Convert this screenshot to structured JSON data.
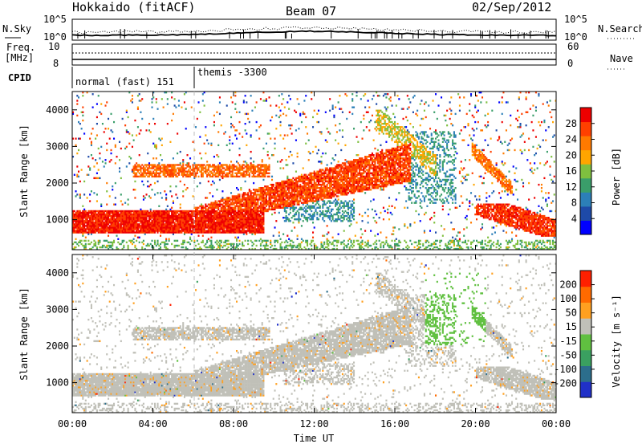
{
  "header": {
    "station": "Hokkaido (fitACF)",
    "beam": "Beam 07",
    "date": "02/Sep/2012"
  },
  "noise_panel": {
    "left_label": "N.Sky",
    "right_label": "N.Search",
    "left_ticks": [
      "10^5",
      "10^0"
    ],
    "right_ticks": [
      "10^5",
      "10^0"
    ]
  },
  "freq_panel": {
    "left_label_1": "Freq.",
    "left_label_2": "[MHz]",
    "left_ticks": [
      "10",
      "8"
    ],
    "right_label": "Nave",
    "right_ticks": [
      "60",
      "0"
    ]
  },
  "cpid_panel": {
    "label": "CPID",
    "modes": [
      "normal (fast) 151",
      "themis -3300"
    ]
  },
  "power_panel": {
    "ylabel": "Slant Range [km]",
    "yticks": [
      "4000",
      "3000",
      "2000",
      "1000"
    ],
    "colorbar_label": "Power [dB]",
    "colorbar_ticks": [
      "28",
      "24",
      "20",
      "16",
      "12",
      "8",
      "4"
    ],
    "colors": [
      "#0000ff",
      "#1e4aa8",
      "#2c7fb8",
      "#3a9e6a",
      "#7fbf3f",
      "#ffa500",
      "#ff7a00",
      "#ff4000",
      "#ee0000"
    ]
  },
  "velocity_panel": {
    "ylabel": "Slant Range [km]",
    "yticks": [
      "4000",
      "3000",
      "2000",
      "1000"
    ],
    "colorbar_label": "Velocity [m s⁻¹]",
    "colorbar_ticks": [
      "200",
      "100",
      "50",
      "15",
      "-15",
      "-50",
      "-100",
      "-200"
    ],
    "colors": [
      "#2030c8",
      "#2c6e8c",
      "#3aa060",
      "#60c040",
      "#c0c0b8",
      "#ffa020",
      "#ff6a00",
      "#ff2000"
    ]
  },
  "xaxis": {
    "label": "Time UT",
    "ticks": [
      "00:00",
      "04:00",
      "08:00",
      "12:00",
      "16:00",
      "20:00",
      "00:00"
    ]
  },
  "chart_data": {
    "type": "heatmap",
    "title": "Hokkaido (fitACF) Beam 07 02/Sep/2012",
    "xlabel": "Time UT",
    "ylabel": "Slant Range [km]",
    "xlim": [
      "00:00",
      "24:00"
    ],
    "ylim": [
      180,
      4500
    ],
    "power_range_dB": [
      0,
      30
    ],
    "velocity_range": [
      -250,
      250
    ],
    "features": [
      {
        "name": "near-range E/F scatter band",
        "t_start": 0.0,
        "t_end": 9.0,
        "r_low": 600,
        "r_high": 1200,
        "power_dB": 28
      },
      {
        "name": "rising F-region echo",
        "t_start": 6.0,
        "t_end": 16.5,
        "r_low": 900,
        "r_high": 2700,
        "power_dB": 26
      },
      {
        "name": "upper band",
        "t_start": 3.0,
        "t_end": 9.5,
        "r_low": 2100,
        "r_high": 2500,
        "power_dB": 24
      },
      {
        "name": "evening streak",
        "t_start": 20.0,
        "t_end": 21.5,
        "r_low": 1800,
        "r_high": 2900,
        "power_dB": 22
      }
    ]
  }
}
